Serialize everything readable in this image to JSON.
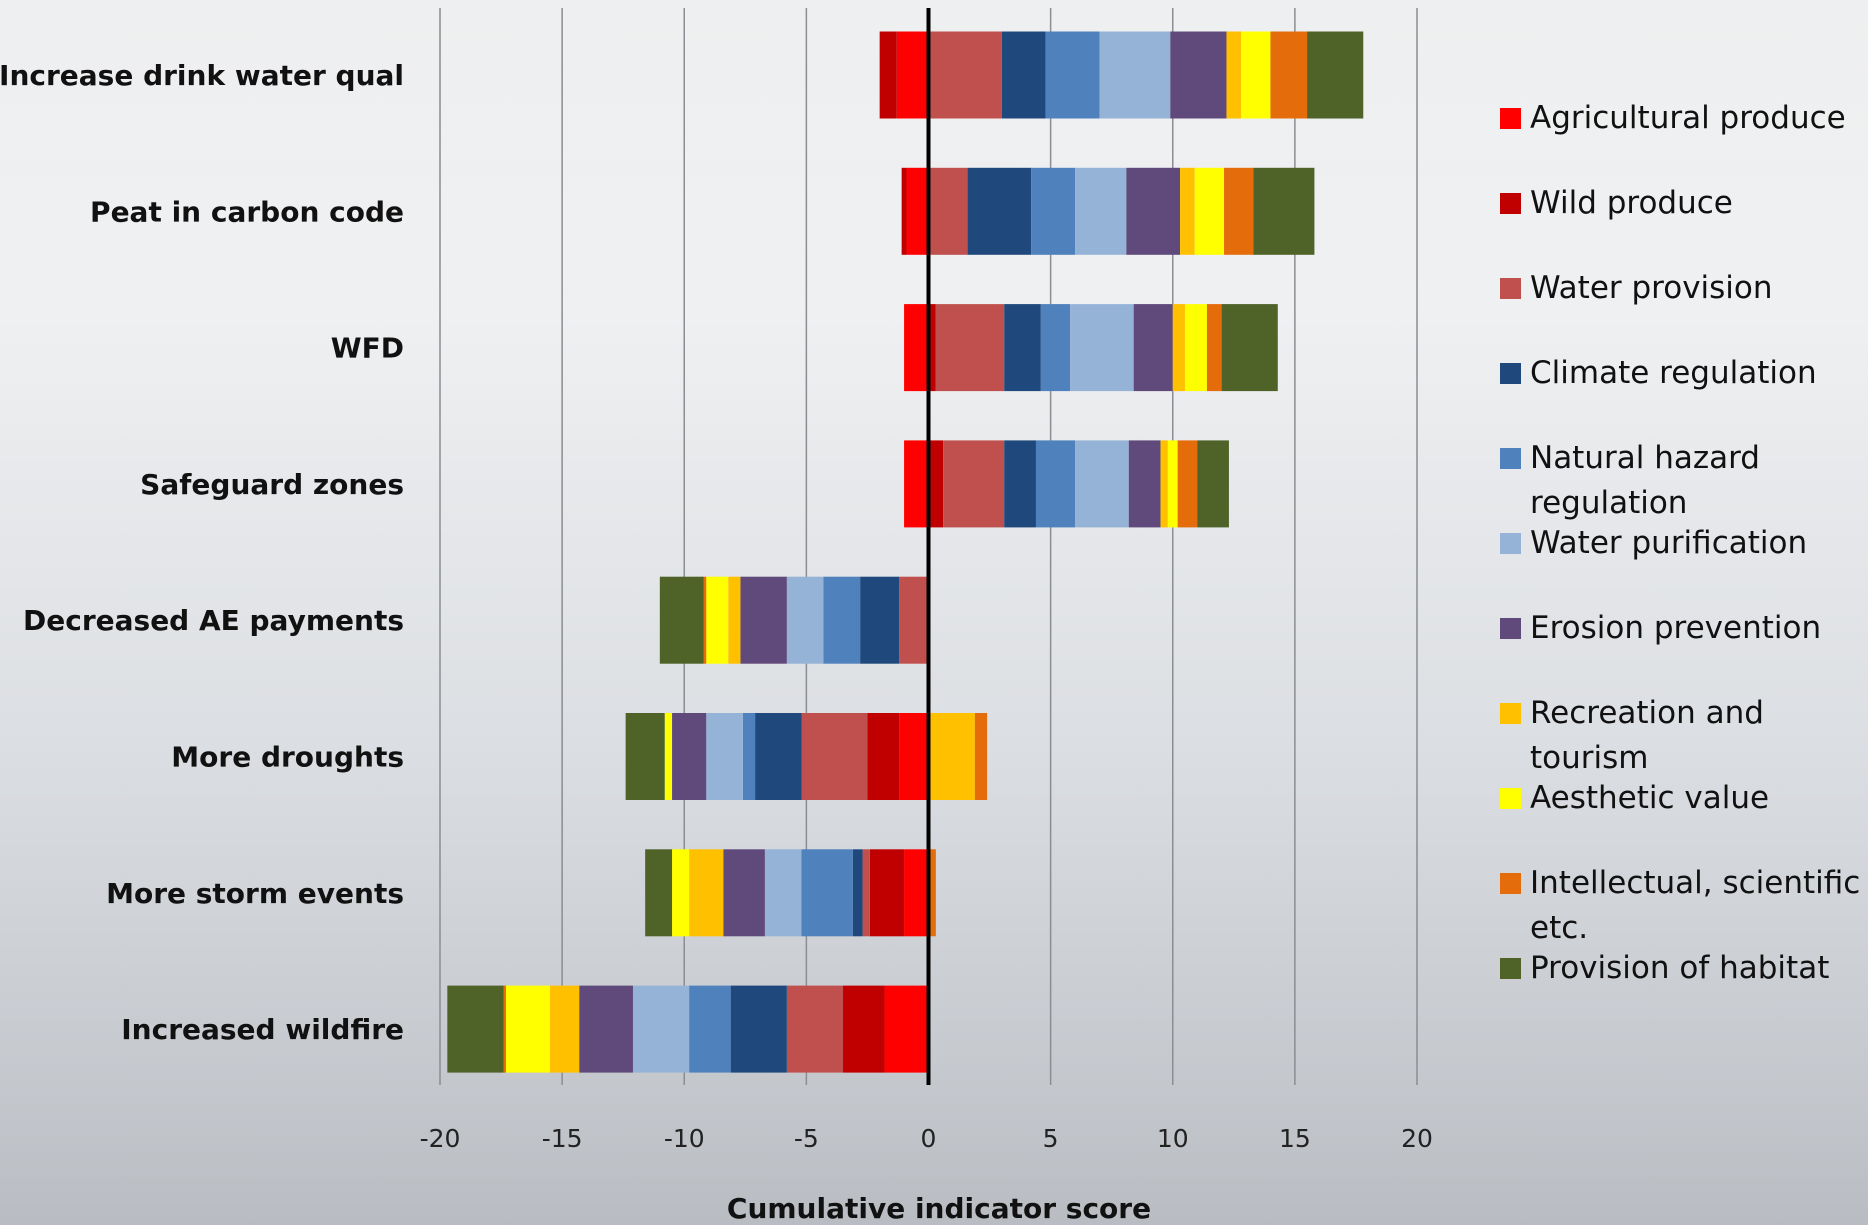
{
  "chart_data": {
    "type": "bar",
    "orientation": "horizontal",
    "stacked": "diverging",
    "xlabel": "Cumulative indicator score",
    "xlim": [
      -20,
      20
    ],
    "xticks": [
      "-20",
      "-15",
      "-10",
      "-5",
      "0",
      "5",
      "10",
      "15",
      "20"
    ],
    "grid": "vertical",
    "legend_position": "right",
    "categories": [
      "Increase drink water qual",
      "Peat in carbon code",
      "WFD",
      "Safeguard zones",
      "Decreased AE payments",
      "More droughts",
      "More storm events",
      "Increased wildfire"
    ],
    "series": [
      {
        "name": "Agricultural produce",
        "color": "#ff0000",
        "values": [
          -1.3,
          -0.9,
          -1.0,
          -1.0,
          0,
          -1.2,
          -1.0,
          -1.8
        ]
      },
      {
        "name": "Wild produce",
        "color": "#c00000",
        "values": [
          -0.7,
          -0.2,
          0.3,
          0.6,
          0,
          -1.3,
          -1.4,
          -1.7
        ]
      },
      {
        "name": "Water provision",
        "color": "#c0504d",
        "values": [
          3.0,
          1.6,
          2.8,
          2.5,
          -1.2,
          -2.7,
          -0.3,
          -2.3
        ]
      },
      {
        "name": "Climate regulation",
        "color": "#1f497d",
        "values": [
          1.8,
          2.6,
          1.5,
          1.3,
          -1.6,
          -1.9,
          -0.4,
          -2.3
        ]
      },
      {
        "name": "Natural hazard regulation",
        "color": "#4f81bd",
        "values": [
          2.2,
          1.8,
          1.2,
          1.6,
          -1.5,
          -0.5,
          -2.1,
          -1.7
        ]
      },
      {
        "name": "Water purification",
        "color": "#95b3d7",
        "values": [
          2.9,
          2.1,
          2.6,
          2.2,
          -1.5,
          -1.5,
          -1.5,
          -2.3
        ]
      },
      {
        "name": "Erosion prevention",
        "color": "#604a7b",
        "values": [
          2.3,
          2.2,
          1.6,
          1.3,
          -1.9,
          -1.4,
          -1.7,
          -2.2
        ]
      },
      {
        "name": "Recreation and tourism",
        "color": "#ffc000",
        "values": [
          0.6,
          0.6,
          0.5,
          0.3,
          -0.5,
          1.9,
          -1.4,
          -1.2
        ]
      },
      {
        "name": "Aesthetic value",
        "color": "#ffff00",
        "values": [
          1.2,
          1.2,
          0.9,
          0.4,
          -0.9,
          -0.3,
          -0.7,
          -1.8
        ]
      },
      {
        "name": "Intellectual, scientific etc.",
        "color": "#e46c0a",
        "values": [
          1.5,
          1.2,
          0.6,
          0.8,
          -0.1,
          0.5,
          0.3,
          -0.1
        ]
      },
      {
        "name": "Provision of habitat",
        "color": "#4f6228",
        "values": [
          2.3,
          2.5,
          2.3,
          1.3,
          -1.8,
          -1.6,
          -1.1,
          -2.3
        ]
      }
    ]
  }
}
